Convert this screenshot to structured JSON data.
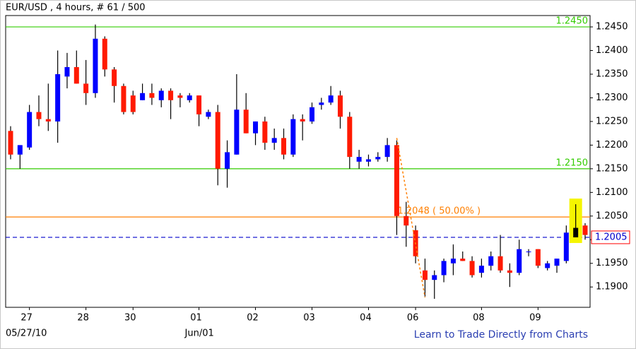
{
  "chart_data": {
    "type": "candlestick",
    "title": "EUR/USD , 4 hours, # 61 / 500",
    "categories": [
      null,
      null,
      "27",
      null,
      null,
      null,
      null,
      null,
      "28",
      null,
      null,
      null,
      null,
      "30",
      null,
      null,
      null,
      null,
      null,
      null,
      "01",
      null,
      null,
      null,
      null,
      null,
      "02",
      null,
      null,
      null,
      null,
      null,
      "03",
      null,
      null,
      null,
      null,
      null,
      "04",
      null,
      null,
      null,
      null,
      "06",
      null,
      null,
      null,
      null,
      null,
      null,
      "08",
      null,
      null,
      null,
      null,
      null,
      "09",
      null,
      null,
      null,
      null,
      null
    ],
    "date_labels": [
      "05/27/10",
      "Jun/01"
    ],
    "up_color": "#0000ff",
    "down_color": "#ff1a00",
    "series": [
      {
        "open": [
          1.223,
          1.218,
          1.2195,
          1.227,
          1.2255,
          1.225,
          1.2345,
          1.2365,
          1.233,
          1.231,
          1.2425,
          1.236,
          1.2325,
          1.2305,
          1.2295,
          1.231,
          1.2295,
          1.2315,
          1.2305,
          1.2295,
          1.2305,
          1.226,
          1.227,
          1.215,
          1.218,
          1.2275,
          1.2225,
          1.225,
          1.2205,
          1.2215,
          1.218,
          1.2255,
          1.225,
          1.2285,
          1.229,
          1.2305,
          1.226,
          1.2165,
          1.2165,
          1.217,
          1.2175,
          1.22,
          1.205,
          1.202,
          1.1935,
          1.1915,
          1.1925,
          1.195,
          1.196,
          1.1955,
          1.193,
          1.1945,
          1.1965,
          1.1935,
          1.193,
          1.1975,
          1.198,
          1.194,
          1.1945,
          1.1955,
          1.2005,
          1.203
        ],
        "high": [
          1.224,
          1.22,
          1.2285,
          1.2305,
          1.233,
          1.24,
          1.2395,
          1.24,
          1.238,
          1.2455,
          1.243,
          1.2365,
          1.233,
          1.2315,
          1.233,
          1.233,
          1.232,
          1.232,
          1.231,
          1.231,
          1.2305,
          1.2275,
          1.2285,
          1.221,
          1.235,
          1.231,
          1.225,
          1.226,
          1.2235,
          1.2235,
          1.2265,
          1.2265,
          1.229,
          1.23,
          1.2325,
          1.2315,
          1.227,
          1.219,
          1.218,
          1.2185,
          1.2215,
          1.221,
          1.208,
          1.203,
          1.196,
          1.1935,
          1.196,
          1.199,
          1.1975,
          1.1965,
          1.196,
          1.1975,
          1.201,
          1.195,
          1.2,
          1.198,
          1.198,
          1.1955,
          1.196,
          1.203,
          1.2075,
          1.2035
        ],
        "low": [
          1.217,
          1.215,
          1.219,
          1.224,
          1.223,
          1.2205,
          1.232,
          1.233,
          1.2285,
          1.23,
          1.2345,
          1.229,
          1.2265,
          1.2265,
          1.2295,
          1.2285,
          1.228,
          1.2255,
          1.228,
          1.229,
          1.224,
          1.2255,
          1.2115,
          1.211,
          1.218,
          1.2225,
          1.22,
          1.219,
          1.219,
          1.217,
          1.2175,
          1.221,
          1.2245,
          1.2275,
          1.2285,
          1.2235,
          1.215,
          1.215,
          1.2155,
          1.2165,
          1.2165,
          1.201,
          1.1985,
          1.195,
          1.188,
          1.1875,
          1.191,
          1.1925,
          1.1955,
          1.192,
          1.192,
          1.1935,
          1.193,
          1.19,
          1.1925,
          1.1965,
          1.194,
          1.1935,
          1.193,
          1.195,
          1.2005,
          1.2
        ],
        "close": [
          1.218,
          1.22,
          1.227,
          1.2255,
          1.225,
          1.235,
          1.2365,
          1.233,
          1.231,
          1.2425,
          1.236,
          1.2325,
          1.227,
          1.227,
          1.231,
          1.23,
          1.2315,
          1.2295,
          1.23,
          1.2305,
          1.2265,
          1.227,
          1.215,
          1.2185,
          1.2275,
          1.2225,
          1.225,
          1.2205,
          1.2215,
          1.218,
          1.2255,
          1.225,
          1.228,
          1.229,
          1.2305,
          1.226,
          1.2175,
          1.2175,
          1.217,
          1.2175,
          1.22,
          1.205,
          1.203,
          1.1965,
          1.1915,
          1.1925,
          1.1955,
          1.196,
          1.1955,
          1.1925,
          1.1945,
          1.1965,
          1.1935,
          1.193,
          1.198,
          1.1975,
          1.1945,
          1.195,
          1.196,
          1.2015,
          1.2025,
          1.201
        ]
      }
    ],
    "highlight_index": 60,
    "ylim": [
      1.1857,
      1.2474
    ],
    "yticks": [
      {
        "value": 1.245,
        "label": "1.2450"
      },
      {
        "value": 1.24,
        "label": "1.2400"
      },
      {
        "value": 1.235,
        "label": "1.2350"
      },
      {
        "value": 1.23,
        "label": "1.2300"
      },
      {
        "value": 1.225,
        "label": "1.2250"
      },
      {
        "value": 1.22,
        "label": "1.2200"
      },
      {
        "value": 1.215,
        "label": "1.2150"
      },
      {
        "value": 1.21,
        "label": "1.2100"
      },
      {
        "value": 1.205,
        "label": "1.2050"
      },
      {
        "value": 1.2,
        "label": "1.2000"
      },
      {
        "value": 1.195,
        "label": "1.1950"
      },
      {
        "value": 1.19,
        "label": "1.1900"
      }
    ],
    "hlines": [
      {
        "value": 1.245,
        "label": "1.2450",
        "color": "#33cc00"
      },
      {
        "value": 1.215,
        "label": "1.2150",
        "color": "#33cc00"
      },
      {
        "value": 1.2048,
        "label": "1.2048 ( 50.00% )",
        "color": "#ff7f00"
      }
    ],
    "price_line": {
      "value": 1.2005,
      "label": "1.2005",
      "color": "#0000cc"
    },
    "trendline": {
      "x": [
        41,
        44
      ],
      "y": [
        1.2215,
        1.1878
      ],
      "color": "#ff7f00"
    },
    "footer": "Learn to Trade Directly from Charts"
  }
}
